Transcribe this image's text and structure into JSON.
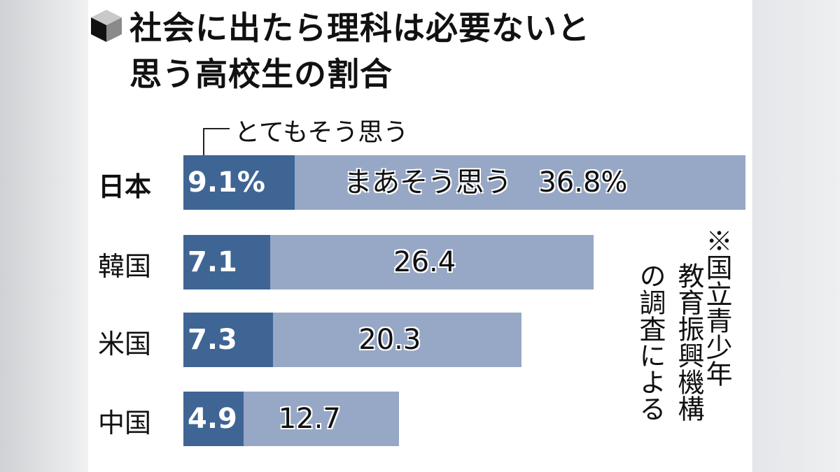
{
  "chart_data": {
    "type": "bar",
    "orientation": "horizontal",
    "stacked": true,
    "title": "社会に出たら理科は必要ないと思う高校生の割合",
    "title_lines": [
      "社会に出たら理科は必要ないと",
      "思う高校生の割合"
    ],
    "categories": [
      "日本",
      "韓国",
      "米国",
      "中国"
    ],
    "series": [
      {
        "name": "とてもそう思う",
        "values": [
          9.1,
          7.1,
          7.3,
          4.9
        ],
        "labels": [
          "9.1%",
          "7.1",
          "7.3",
          "4.9"
        ],
        "color": "#3f6594"
      },
      {
        "name": "まあそう思う",
        "values": [
          36.8,
          26.4,
          20.3,
          12.7
        ],
        "labels": [
          "36.8%",
          "26.4",
          "20.3",
          "12.7"
        ],
        "color": "#97a8c6"
      }
    ],
    "xlim": [
      0,
      45.9
    ],
    "grid": false,
    "legend": "inline",
    "note_lines": [
      "※国立青少年",
      "教育振興機構",
      "の調査による"
    ]
  }
}
